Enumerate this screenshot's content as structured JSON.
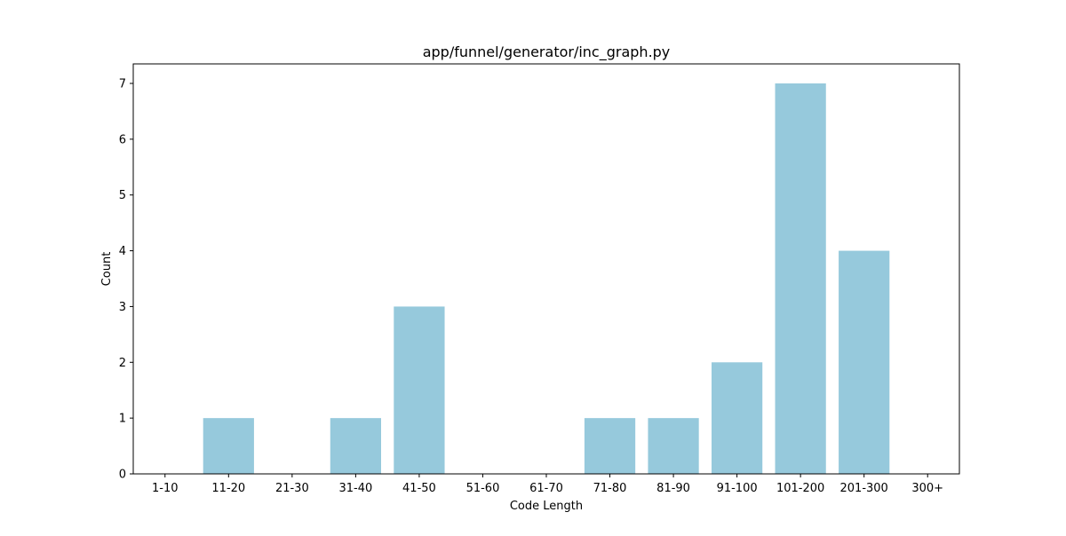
{
  "chart_data": {
    "type": "bar",
    "title": "app/funnel/generator/inc_graph.py",
    "xlabel": "Code Length",
    "ylabel": "Count",
    "categories": [
      "1-10",
      "11-20",
      "21-30",
      "31-40",
      "41-50",
      "51-60",
      "61-70",
      "71-80",
      "81-90",
      "91-100",
      "101-200",
      "201-300",
      "300+"
    ],
    "values": [
      0,
      1,
      0,
      1,
      3,
      0,
      0,
      1,
      1,
      2,
      7,
      4,
      0
    ],
    "ylim": [
      0,
      7.35
    ],
    "yticks": [
      0,
      1,
      2,
      3,
      4,
      5,
      6,
      7
    ],
    "grid": false,
    "bar_color": "#96c9dc",
    "axis_color": "#000000"
  }
}
